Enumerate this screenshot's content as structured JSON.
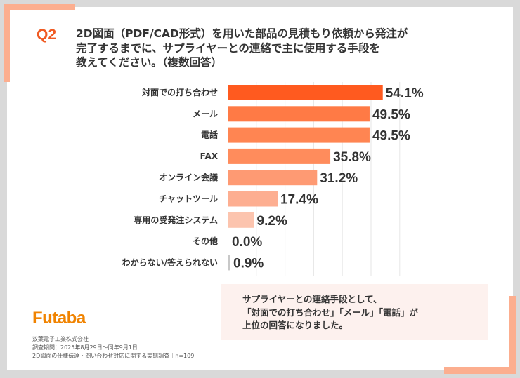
{
  "header": {
    "q_label": "Q2",
    "question": "2D図面（PDF/CAD形式）を用いた部品の見積もり依頼から発注が\n完了するまでに、サプライヤーとの連絡で主に使用する手段を\n教えてください。（複数回答）"
  },
  "chart_data": {
    "type": "bar",
    "orientation": "horizontal",
    "categories": [
      "対面での打ち合わせ",
      "メール",
      "電話",
      "FAX",
      "オンライン会議",
      "チャットツール",
      "専用の受発注システム",
      "その他",
      "わからない/答えられない"
    ],
    "values": [
      54.1,
      49.5,
      49.5,
      35.8,
      31.2,
      17.4,
      9.2,
      0.0,
      0.9
    ],
    "value_labels": [
      "54.1%",
      "49.5%",
      "49.5%",
      "35.8%",
      "31.2%",
      "17.4%",
      "9.2%",
      "0.0%",
      "0.9%"
    ],
    "colors": [
      "#ff5a1f",
      "#ff7a45",
      "#ff8552",
      "#ff8c5c",
      "#fe9a73",
      "#fdae91",
      "#fcc4ae",
      "#fcc4ae",
      "#c8c8c8"
    ],
    "xlim": [
      0,
      60
    ],
    "grid": true,
    "unit": "%"
  },
  "summary": "サプライヤーとの連絡手段として、\n「対面での打ち合わせ」「メール」「電話」が\n上位の回答になりました。",
  "footer": {
    "logo": "Futaba",
    "company": "双葉電子工業株式会社",
    "period": "調査期間：2025年8月29日～同年9月1日",
    "survey": "2D図面の仕様伝達・問い合わせ対応に関する実態調査｜n=109"
  }
}
